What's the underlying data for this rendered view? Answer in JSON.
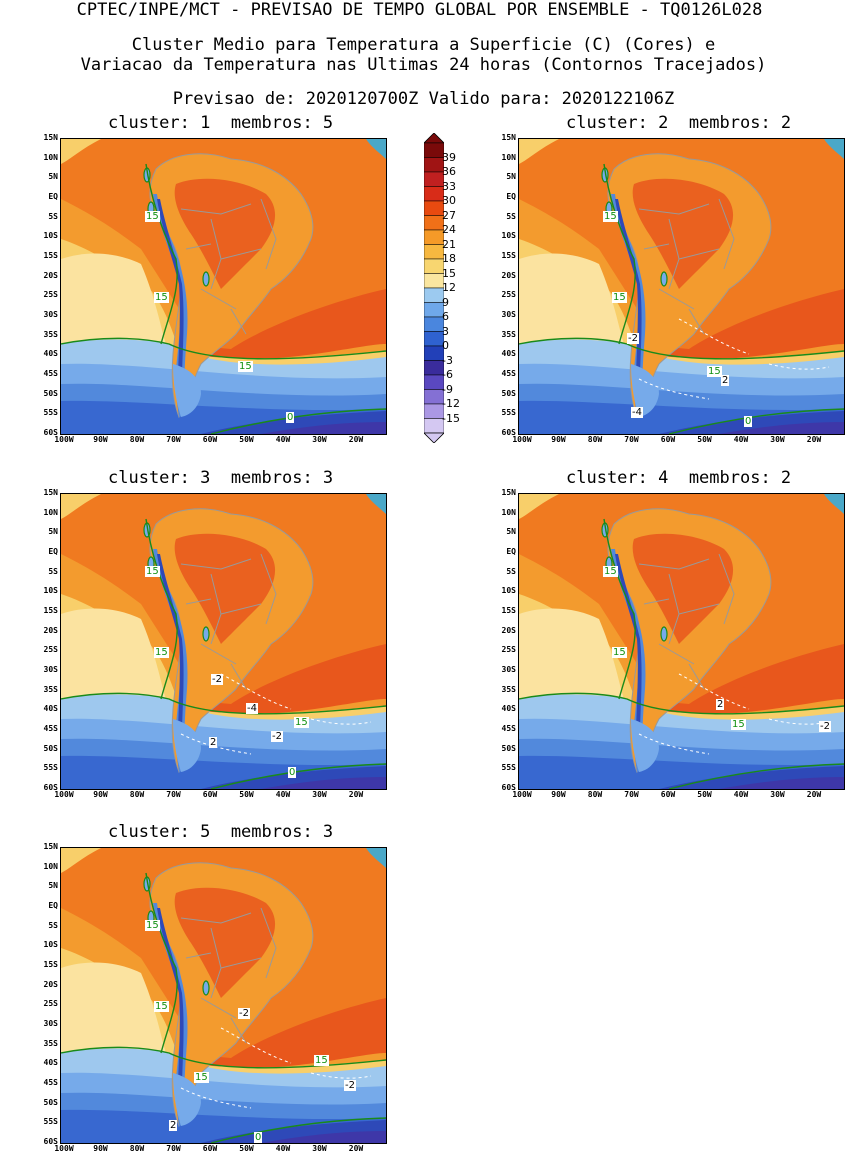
{
  "header": {
    "line1": "CPTEC/INPE/MCT - PREVISAO DE TEMPO GLOBAL POR ENSEMBLE - TQ0126L028",
    "line2": "Cluster Medio para Temperatura a Superficie (C) (Cores) e",
    "line3": "Variacao da Temperatura nas Ultimas 24 horas (Contornos Tracejados)",
    "line4": "Previsao de: 2020120700Z   Valido para: 2020122106Z"
  },
  "panels": [
    {
      "title": "cluster: 1  membros: 5",
      "labels": [
        {
          "t": "15",
          "c": "green"
        },
        {
          "t": "15",
          "c": "green"
        },
        {
          "t": "15",
          "c": "green"
        },
        {
          "t": "0",
          "c": "green"
        }
      ]
    },
    {
      "title": "cluster: 2  membros: 2",
      "labels": [
        {
          "t": "15",
          "c": "green"
        },
        {
          "t": "15",
          "c": "green"
        },
        {
          "t": "-2",
          "c": "blk"
        },
        {
          "t": "15",
          "c": "green"
        },
        {
          "t": "2",
          "c": "blk"
        },
        {
          "t": "-4",
          "c": "blk"
        },
        {
          "t": "0",
          "c": "green"
        }
      ]
    },
    {
      "title": "cluster: 3  membros: 3",
      "labels": [
        {
          "t": "15",
          "c": "green"
        },
        {
          "t": "15",
          "c": "green"
        },
        {
          "t": "-2",
          "c": "blk"
        },
        {
          "t": "-4",
          "c": "blk"
        },
        {
          "t": "15",
          "c": "green"
        },
        {
          "t": "-2",
          "c": "blk"
        },
        {
          "t": "2",
          "c": "blk"
        },
        {
          "t": "0",
          "c": "green"
        }
      ]
    },
    {
      "title": "cluster: 4  membros: 2",
      "labels": [
        {
          "t": "15",
          "c": "green"
        },
        {
          "t": "15",
          "c": "green"
        },
        {
          "t": "2",
          "c": "blk"
        },
        {
          "t": "15",
          "c": "green"
        },
        {
          "t": "-2",
          "c": "blk"
        }
      ]
    },
    {
      "title": "cluster: 5  membros: 3",
      "labels": [
        {
          "t": "15",
          "c": "green"
        },
        {
          "t": "15",
          "c": "green"
        },
        {
          "t": "-2",
          "c": "blk"
        },
        {
          "t": "15",
          "c": "green"
        },
        {
          "t": "15",
          "c": "green"
        },
        {
          "t": "-2",
          "c": "blk"
        },
        {
          "t": "2",
          "c": "blk"
        },
        {
          "t": "0",
          "c": "green"
        }
      ]
    }
  ],
  "y_axis": [
    "15N",
    "10N",
    "5N",
    "EQ",
    "5S",
    "10S",
    "15S",
    "20S",
    "25S",
    "30S",
    "35S",
    "40S",
    "45S",
    "50S",
    "55S",
    "60S"
  ],
  "x_axis": [
    "100W",
    "90W",
    "80W",
    "70W",
    "60W",
    "50W",
    "40W",
    "30W",
    "20W"
  ],
  "legend": {
    "ticks": [
      "39",
      "36",
      "33",
      "30",
      "27",
      "24",
      "21",
      "18",
      "15",
      "12",
      "9",
      "6",
      "3",
      "0",
      "-3",
      "-6",
      "-9",
      "-12",
      "-15"
    ],
    "colors": [
      "#7a0a0a",
      "#a01414",
      "#c02020",
      "#d82c18",
      "#e84a10",
      "#f07018",
      "#f59a28",
      "#f7b840",
      "#f8d670",
      "#fae6a0",
      "#9ccaf0",
      "#6fa8ea",
      "#4a86de",
      "#2f62d0",
      "#2240b8",
      "#3a2c9c",
      "#5a48c0",
      "#8470d4",
      "#ab98e4",
      "#d4c8f2"
    ]
  },
  "palette": {
    "hot": "#e8571c",
    "warm": "#f07a20",
    "orange": "#f39b2e",
    "yellow": "#f8cf6a",
    "pale": "#fbe3a0",
    "lightblue": "#9ec8ee",
    "blue1": "#76aaea",
    "blue2": "#5289dc",
    "blue3": "#3868d0",
    "deep": "#2e49b8",
    "purple": "#3e37a8",
    "land": "#b0b0b0",
    "contour": "#1a8a1a"
  }
}
